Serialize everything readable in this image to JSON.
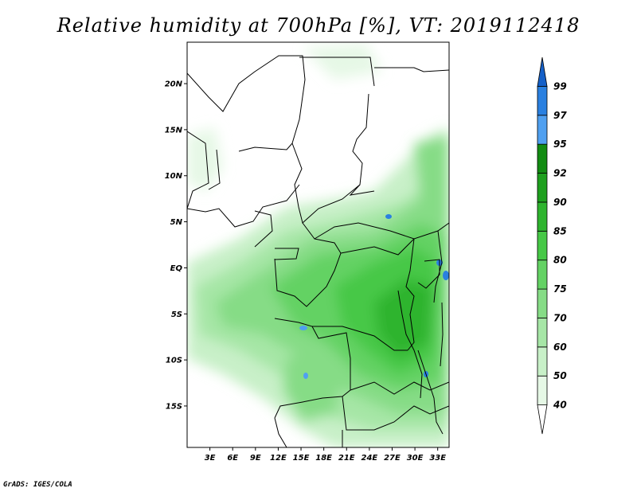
{
  "title": "Relative humidity at 700hPa [%], VT: 2019112418",
  "credit": "GrADS: IGES/COLA",
  "map": {
    "lat_range": [
      -19.5,
      24.5
    ],
    "lon_range": [
      0,
      34.5
    ],
    "lat_ticks": [
      {
        "value": 20,
        "label": "20N"
      },
      {
        "value": 15,
        "label": "15N"
      },
      {
        "value": 10,
        "label": "10N"
      },
      {
        "value": 5,
        "label": "5N"
      },
      {
        "value": 0,
        "label": "EQ"
      },
      {
        "value": -5,
        "label": "5S"
      },
      {
        "value": -10,
        "label": "10S"
      },
      {
        "value": -15,
        "label": "15S"
      }
    ],
    "lon_ticks": [
      {
        "value": 3,
        "label": "3E"
      },
      {
        "value": 6,
        "label": "6E"
      },
      {
        "value": 9,
        "label": "9E"
      },
      {
        "value": 12,
        "label": "12E"
      },
      {
        "value": 15,
        "label": "15E"
      },
      {
        "value": 18,
        "label": "18E"
      },
      {
        "value": 21,
        "label": "21E"
      },
      {
        "value": 24,
        "label": "24E"
      },
      {
        "value": 27,
        "label": "27E"
      },
      {
        "value": 30,
        "label": "30E"
      },
      {
        "value": 33,
        "label": "33E"
      }
    ]
  },
  "colorbar": {
    "levels": [
      "40",
      "50",
      "60",
      "70",
      "75",
      "80",
      "85",
      "90",
      "92",
      "95",
      "97",
      "99"
    ],
    "colors": [
      "#ffffff",
      "#e6f8e6",
      "#c8f0c8",
      "#a6e6a6",
      "#86dc86",
      "#64d264",
      "#46c846",
      "#2eb42e",
      "#1ea01e",
      "#128c12",
      "#50a0f0",
      "#2a80e0",
      "#1560c8"
    ]
  }
}
